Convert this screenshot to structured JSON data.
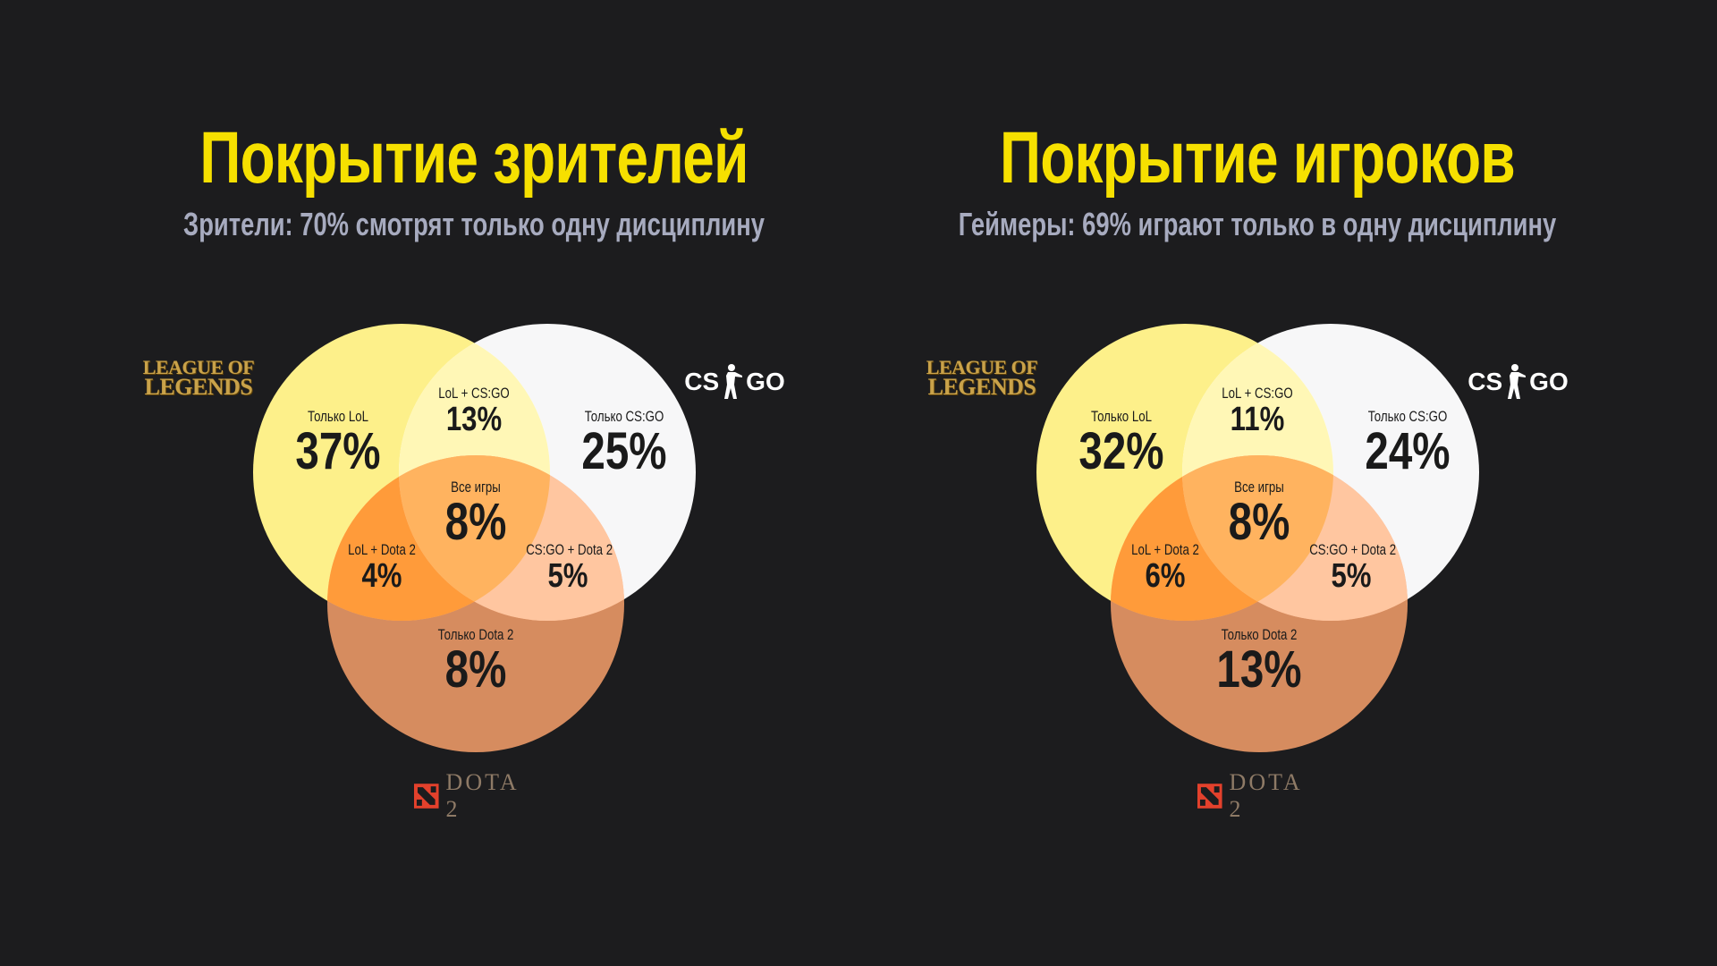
{
  "colors": {
    "background": "#1c1c1e",
    "title": "#f6e000",
    "subtitle": "#a7abbf",
    "lol_circle": "#fdf08a",
    "csgo_circle": "#ffffff",
    "dota_circle": "#ffa56e"
  },
  "logos": {
    "lol_line1": "LEAGUE OF",
    "lol_line2": "LEGENDS",
    "csgo_left": "CS",
    "csgo_right": "GO",
    "dota": "DOTA 2",
    "lol_icon": "league-of-legends-logo",
    "csgo_icon": "csgo-soldier-logo",
    "dota_icon": "dota2-logo"
  },
  "chart_data": [
    {
      "type": "venn",
      "title": "Покрытие зрителей",
      "subtitle": "Зрители: 70% смотрят только одну дисциплину",
      "sets": [
        "LoL",
        "CS:GO",
        "Dota 2"
      ],
      "regions": {
        "lol_only": {
          "label": "Только LoL",
          "value": "37%"
        },
        "csgo_only": {
          "label": "Только CS:GO",
          "value": "25%"
        },
        "dota_only": {
          "label": "Только Dota 2",
          "value": "8%"
        },
        "lol_csgo": {
          "label": "LoL + CS:GO",
          "value": "13%"
        },
        "lol_dota": {
          "label": "LoL + Dota 2",
          "value": "4%"
        },
        "csgo_dota": {
          "label": "CS:GO + Dota 2",
          "value": "5%"
        },
        "all": {
          "label": "Все игры",
          "value": "8%"
        }
      }
    },
    {
      "type": "venn",
      "title": "Покрытие игроков",
      "subtitle": "Геймеры: 69% играют только в одну дисциплину",
      "sets": [
        "LoL",
        "CS:GO",
        "Dota 2"
      ],
      "regions": {
        "lol_only": {
          "label": "Только LoL",
          "value": "32%"
        },
        "csgo_only": {
          "label": "Только CS:GO",
          "value": "24%"
        },
        "dota_only": {
          "label": "Только Dota 2",
          "value": "13%"
        },
        "lol_csgo": {
          "label": "LoL + CS:GO",
          "value": "11%"
        },
        "lol_dota": {
          "label": "LoL + Dota 2",
          "value": "6%"
        },
        "csgo_dota": {
          "label": "CS:GO + Dota 2",
          "value": "5%"
        },
        "all": {
          "label": "Все игры",
          "value": "8%"
        }
      }
    }
  ]
}
